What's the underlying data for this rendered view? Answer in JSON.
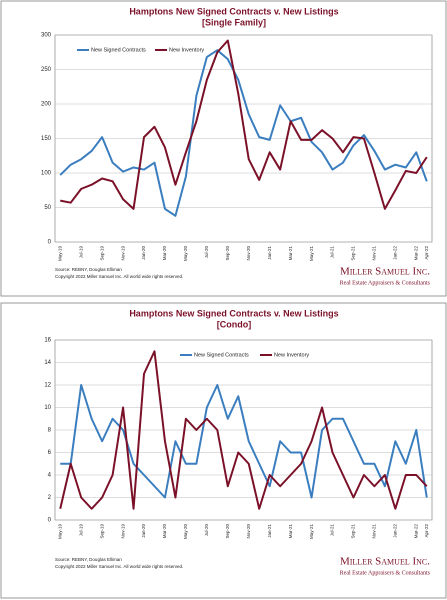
{
  "chart_data": [
    {
      "type": "line",
      "title": "Hamptons New Signed Contracts v. New Listings",
      "subtitle": "[Single Family]",
      "categories": [
        "May-19",
        null,
        "Jul-19",
        null,
        "Sep-19",
        null,
        "Nov-19",
        null,
        "Jan-20",
        null,
        "Mar-20",
        null,
        "May-20",
        null,
        "Jul-20",
        null,
        "Sep-20",
        null,
        "Nov-20",
        null,
        "Jan-21",
        null,
        "Mar-21",
        null,
        "May-21",
        null,
        "Jul-21",
        null,
        "Sep-21",
        null,
        "Nov-21",
        null,
        "Jan-22",
        null,
        "Mar-22",
        "Apr-22"
      ],
      "series": [
        {
          "name": "New Signed Contracts",
          "color": "#3a7ebf",
          "values": [
            97,
            112,
            120,
            132,
            152,
            115,
            102,
            108,
            105,
            115,
            48,
            38,
            95,
            212,
            268,
            278,
            265,
            235,
            185,
            152,
            148,
            198,
            175,
            180,
            145,
            130,
            105,
            115,
            140,
            155,
            132,
            105,
            112,
            108,
            130,
            88
          ]
        },
        {
          "name": "New Inventory",
          "color": "#7b1128",
          "values": [
            60,
            57,
            77,
            83,
            92,
            88,
            62,
            48,
            152,
            167,
            137,
            83,
            130,
            175,
            235,
            275,
            292,
            215,
            120,
            90,
            130,
            105,
            175,
            148,
            148,
            162,
            150,
            130,
            152,
            150,
            100,
            48,
            75,
            103,
            100,
            123
          ]
        }
      ],
      "ylim": [
        0,
        300
      ],
      "yticks": [
        0,
        50,
        100,
        150,
        200,
        250,
        300
      ],
      "legend": "upper left",
      "source": "Source: REBNY, Douglas Elliman",
      "copyright": "Copyright 2022 Miller Samuel Inc.  All world wide rights reserved.",
      "brand": "Miller Samuel Inc.",
      "tagline": "Real Estate Appraisers & Consultants"
    },
    {
      "type": "line",
      "title": "Hamptons New Signed Contracts v. New Listings",
      "subtitle": "[Condo]",
      "categories": [
        "May-19",
        null,
        "Jul-19",
        null,
        "Sep-19",
        null,
        "Nov-19",
        null,
        "Jan-20",
        null,
        "Mar-20",
        null,
        "May-20",
        null,
        "Jul-20",
        null,
        "Sep-20",
        null,
        "Nov-20",
        null,
        "Jan-21",
        null,
        "Mar-21",
        null,
        "May-21",
        null,
        "Jul-21",
        null,
        "Sep-21",
        null,
        "Nov-21",
        null,
        "Jan-22",
        null,
        "Mar-22",
        "Apr-22"
      ],
      "series": [
        {
          "name": "New Signed Contracts",
          "color": "#3a7ebf",
          "values": [
            5,
            5,
            12,
            9,
            7,
            9,
            8,
            5,
            4,
            3,
            2,
            7,
            5,
            5,
            10,
            12,
            9,
            11,
            7,
            5,
            3,
            7,
            6,
            6,
            2,
            8,
            9,
            9,
            7,
            5,
            5,
            3,
            7,
            5,
            8,
            2
          ]
        },
        {
          "name": "New Inventory",
          "color": "#7b1128",
          "values": [
            1,
            5,
            2,
            1,
            2,
            4,
            10,
            1,
            13,
            15,
            7,
            2,
            9,
            8,
            9,
            8,
            3,
            6,
            5,
            1,
            4,
            3,
            4,
            5,
            7,
            10,
            6,
            4,
            2,
            4,
            3,
            4,
            1,
            4,
            4,
            3
          ]
        }
      ],
      "ylim": [
        0,
        16
      ],
      "yticks": [
        0,
        2,
        4,
        6,
        8,
        10,
        12,
        14,
        16
      ],
      "legend": "upper center",
      "source": "Source: REBNY, Douglas Elliman",
      "copyright": "Copyright 2022 Miller Samuel Inc.  All world wide rights reserved.",
      "brand": "Miller Samuel Inc.",
      "tagline": "Real Estate Appraisers & Consultants"
    }
  ]
}
